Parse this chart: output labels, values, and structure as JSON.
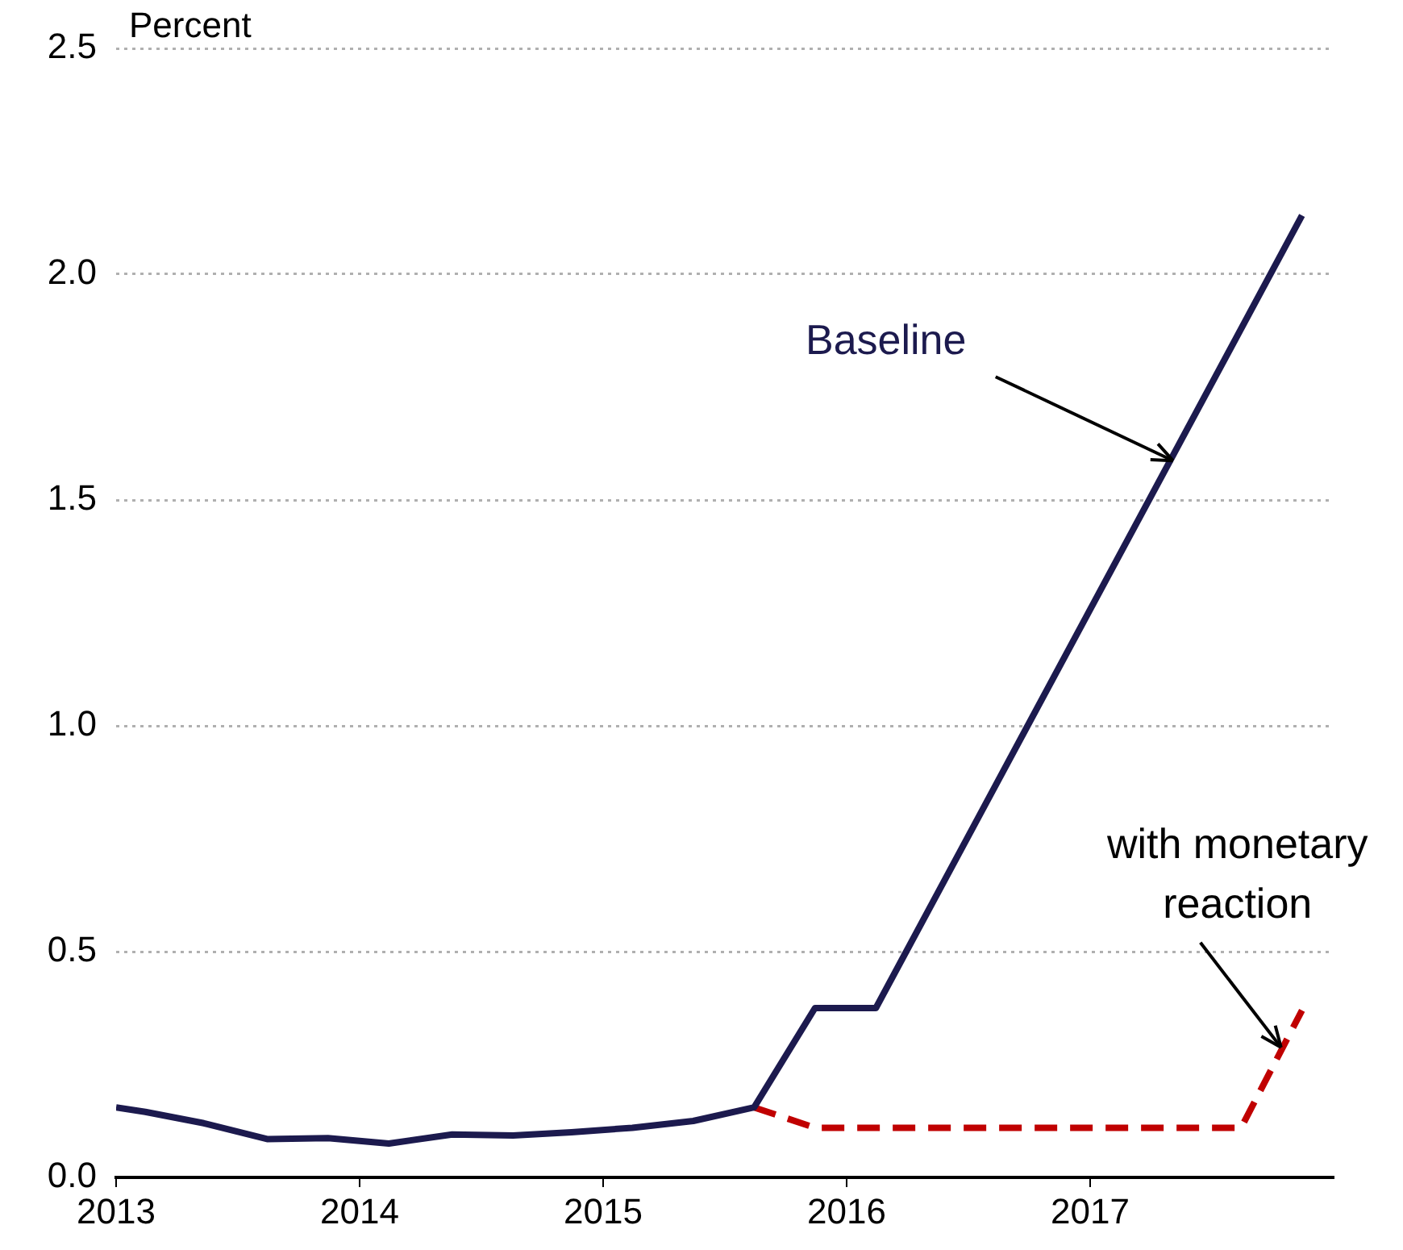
{
  "chart_data": {
    "type": "line",
    "ylabel": "Percent",
    "xlim": [
      2013,
      2018
    ],
    "xticks": [
      2013,
      2014,
      2015,
      2016,
      2017
    ],
    "ylim": [
      0,
      2.5
    ],
    "yticks": [
      {
        "value": 0,
        "label": "0.0"
      },
      0.5,
      {
        "value": 1,
        "label": "1.0"
      },
      1.5,
      {
        "value": 2,
        "label": "2.0"
      },
      2.5
    ],
    "grid": "y",
    "legend": false,
    "marker": "none",
    "series": [
      {
        "name": "Baseline",
        "color": "#1c1a4e",
        "line_style": "solid",
        "x": [
          2013.0,
          2013.12,
          2013.36,
          2013.62,
          2013.87,
          2014.12,
          2014.38,
          2014.63,
          2014.87,
          2015.12,
          2015.37,
          2015.62,
          2015.87,
          2016.12,
          2017.87
        ],
        "values": [
          0.155,
          0.145,
          0.12,
          0.085,
          0.087,
          0.075,
          0.095,
          0.093,
          0.1,
          0.11,
          0.125,
          0.155,
          0.375,
          0.375,
          2.13
        ]
      },
      {
        "name": "with monetary reaction",
        "color": "#c00000",
        "line_style": "dashed",
        "x": [
          2015.62,
          2015.87,
          2016.12,
          2016.37,
          2016.62,
          2016.87,
          2017.12,
          2017.37,
          2017.62,
          2017.87
        ],
        "values": [
          0.155,
          0.11,
          0.11,
          0.11,
          0.11,
          0.11,
          0.11,
          0.11,
          0.11,
          0.37
        ]
      }
    ]
  }
}
